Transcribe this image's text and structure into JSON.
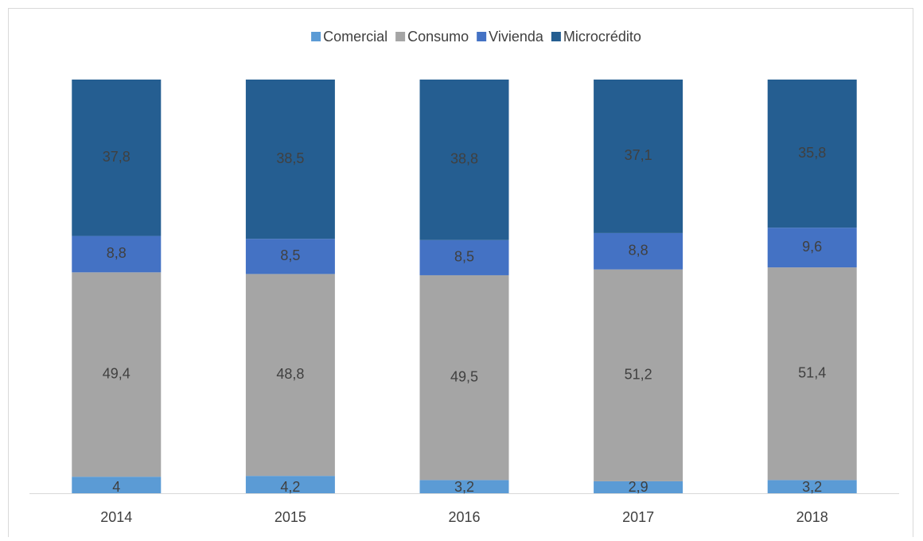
{
  "chart_data": {
    "type": "stacked_bar",
    "categories": [
      "2014",
      "2015",
      "2016",
      "2017",
      "2018"
    ],
    "series": [
      {
        "name": "Comercial",
        "color": "#5b9bd5",
        "values": [
          4,
          4.2,
          3.2,
          2.9,
          3.2
        ],
        "value_labels": [
          "4",
          "4,2",
          "3,2",
          "2,9",
          "3,2"
        ]
      },
      {
        "name": "Consumo",
        "color": "#a5a5a5",
        "values": [
          49.4,
          48.8,
          49.5,
          51.2,
          51.4
        ],
        "value_labels": [
          "49,4",
          "48,8",
          "49,5",
          "51,2",
          "51,4"
        ]
      },
      {
        "name": "Vivienda",
        "color": "#4472c4",
        "values": [
          8.8,
          8.5,
          8.5,
          8.8,
          9.6
        ],
        "value_labels": [
          "8,8",
          "8,5",
          "8,5",
          "8,8",
          "9,6"
        ]
      },
      {
        "name": "Microcrédito",
        "color": "#255e91",
        "values": [
          37.8,
          38.5,
          38.8,
          37.1,
          35.8
        ],
        "value_labels": [
          "37,8",
          "38,5",
          "38,8",
          "37,1",
          "35,8"
        ]
      }
    ],
    "ylim": [
      0,
      100
    ],
    "legend": "top"
  }
}
